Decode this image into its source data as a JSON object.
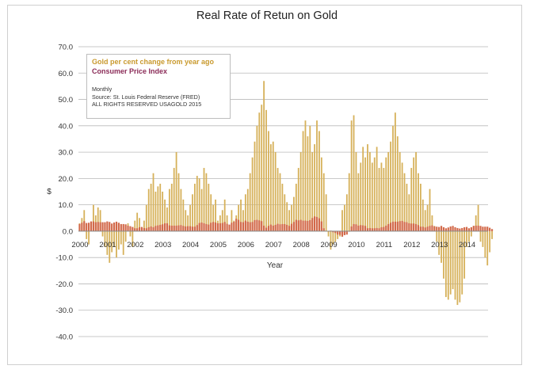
{
  "chart_data": {
    "type": "bar",
    "title": "Real Rate of Retun on Gold",
    "xlabel": "Year",
    "ylabel": "$",
    "ylim": [
      -40,
      70
    ],
    "y_ticks": [
      "70.0",
      "60.0",
      "50.0",
      "40.0",
      "30.0",
      "20.0",
      "10.0",
      "0.0",
      "-10.0",
      "-20.0",
      "-30.0",
      "-40.0"
    ],
    "x_ticks": [
      "2000",
      "2001",
      "2002",
      "2003",
      "2004",
      "2005",
      "2006",
      "2007",
      "2008",
      "2009",
      "2010",
      "2011",
      "2012",
      "2013",
      "2014"
    ],
    "grid": true,
    "legend_position": "top-left",
    "colors": {
      "gold": "#d6b15a",
      "cpi": "#d2694a"
    },
    "series": [
      {
        "name": "Gold per cent change from year ago",
        "frequency": "monthly",
        "start": "2000-01",
        "values": [
          3,
          5,
          8,
          -3,
          -5,
          2,
          10,
          6,
          9,
          8,
          -2,
          -6,
          -9,
          -12,
          -8,
          -6,
          -10,
          -7,
          -5,
          -9,
          -4,
          3,
          -2,
          -6,
          4,
          7,
          5,
          1,
          4,
          10,
          16,
          18,
          22,
          15,
          17,
          18,
          15,
          12,
          9,
          16,
          18,
          24,
          30,
          22,
          16,
          12,
          8,
          6,
          10,
          14,
          18,
          21,
          20,
          16,
          24,
          22,
          18,
          14,
          10,
          12,
          4,
          6,
          8,
          12,
          6,
          2,
          8,
          4,
          6,
          10,
          12,
          8,
          14,
          16,
          22,
          28,
          34,
          40,
          45,
          48,
          57,
          46,
          38,
          33,
          34,
          30,
          24,
          22,
          18,
          14,
          11,
          8,
          10,
          13,
          18,
          24,
          30,
          38,
          42,
          36,
          40,
          30,
          33,
          42,
          38,
          28,
          22,
          14,
          -2,
          -7,
          -5,
          -4,
          -3,
          -2,
          8,
          10,
          14,
          22,
          42,
          44,
          30,
          22,
          26,
          32,
          28,
          33,
          30,
          26,
          28,
          32,
          24,
          26,
          24,
          28,
          30,
          34,
          40,
          45,
          36,
          30,
          26,
          22,
          18,
          14,
          24,
          28,
          30,
          22,
          18,
          12,
          8,
          10,
          16,
          6,
          2,
          -4,
          -9,
          -12,
          -18,
          -25,
          -26,
          -24,
          -22,
          -26,
          -28,
          -27,
          -24,
          -18,
          -6,
          -4,
          -2,
          2,
          6,
          10,
          -4,
          -6,
          -10,
          -13,
          -8,
          -3
        ]
      },
      {
        "name": "Consumer Price Index",
        "frequency": "monthly",
        "start": "2000-01",
        "values": [
          2.7,
          3.2,
          3.8,
          3.1,
          3.2,
          3.7,
          3.7,
          3.4,
          3.5,
          3.4,
          3.4,
          3.4,
          3.7,
          3.5,
          2.9,
          3.3,
          3.6,
          3.2,
          2.7,
          2.7,
          2.6,
          2.1,
          1.9,
          1.6,
          1.1,
          1.1,
          1.5,
          1.6,
          1.2,
          1.1,
          1.5,
          1.8,
          1.5,
          2.0,
          2.2,
          2.4,
          2.6,
          3.0,
          3.0,
          2.2,
          2.1,
          2.1,
          2.1,
          2.2,
          2.3,
          2.0,
          1.8,
          1.9,
          1.9,
          1.7,
          1.7,
          2.3,
          3.1,
          3.3,
          3.0,
          2.7,
          2.5,
          3.2,
          3.5,
          3.3,
          3.0,
          3.0,
          3.1,
          3.5,
          2.8,
          2.5,
          3.2,
          3.6,
          4.7,
          4.3,
          3.5,
          3.4,
          4.0,
          3.6,
          3.4,
          3.5,
          4.2,
          4.3,
          4.1,
          3.8,
          2.1,
          1.3,
          2.0,
          2.5,
          2.1,
          2.4,
          2.8,
          2.6,
          2.7,
          2.7,
          2.4,
          2.0,
          2.8,
          3.5,
          4.3,
          4.1,
          4.3,
          4.0,
          4.0,
          3.9,
          4.2,
          5.0,
          5.6,
          5.4,
          4.9,
          3.7,
          1.1,
          0.1,
          0.0,
          0.2,
          -0.4,
          -0.7,
          -1.3,
          -1.4,
          -2.1,
          -1.5,
          -1.3,
          -0.2,
          1.8,
          2.7,
          2.6,
          2.1,
          2.3,
          2.2,
          2.0,
          1.1,
          1.2,
          1.1,
          1.1,
          1.2,
          1.1,
          1.5,
          1.6,
          2.1,
          2.7,
          3.2,
          3.6,
          3.6,
          3.6,
          3.8,
          3.9,
          3.5,
          3.4,
          3.0,
          2.9,
          2.9,
          2.7,
          2.3,
          1.7,
          1.7,
          1.4,
          1.7,
          2.0,
          2.2,
          1.8,
          1.7,
          1.6,
          2.0,
          1.5,
          1.1,
          1.4,
          1.8,
          2.0,
          1.5,
          1.2,
          1.0,
          1.2,
          1.5,
          1.6,
          1.1,
          1.5,
          2.0,
          2.1,
          2.1,
          2.0,
          1.7,
          1.7,
          1.7,
          1.3,
          0.8
        ]
      }
    ]
  },
  "legend": {
    "gold_label": "Gold per cent change from year ago",
    "cpi_label": "Consumer Price Index",
    "note_frequency": "Monthly",
    "note_source": "Source: St. Louis Federal Reserve (FRED)",
    "note_rights": "ALL RIGHTS RESERVED USAGOLD 2015"
  }
}
